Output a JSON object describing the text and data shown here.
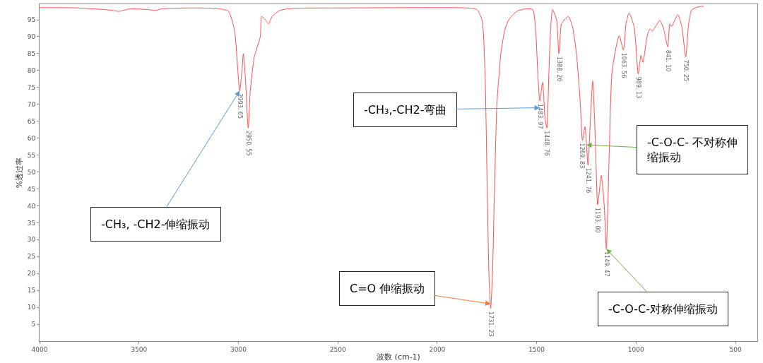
{
  "chart_data": {
    "type": "line",
    "xlabel": "波数 (cm-1)",
    "ylabel": "%透过率",
    "xlim": [
      4000,
      390
    ],
    "xticks": [
      4000,
      3500,
      3000,
      2500,
      2000,
      1500,
      1000,
      500
    ],
    "ylim": [
      0,
      99.6
    ],
    "yticks": [
      5,
      10,
      15,
      20,
      25,
      30,
      35,
      40,
      45,
      50,
      55,
      60,
      65,
      70,
      75,
      80,
      85,
      90,
      95
    ],
    "grid": false,
    "marker": "none",
    "line_style": "solid",
    "series": [
      {
        "color": "#ff4d4d",
        "x": [
          4000,
          3800,
          3650,
          3600,
          3550,
          3450,
          3420,
          3380,
          3200,
          3100,
          3050,
          3020,
          3005,
          2993.65,
          2982,
          2975,
          2965,
          2950.55,
          2940,
          2920,
          2890,
          2883,
          2865,
          2848,
          2830,
          2800,
          2750,
          2500,
          2000,
          1850,
          1800,
          1775,
          1760,
          1750,
          1740,
          1731.23,
          1722,
          1712,
          1700,
          1690,
          1680,
          1660,
          1640,
          1600,
          1560,
          1520,
          1505,
          1495,
          1483.97,
          1470,
          1458,
          1448.76,
          1438,
          1430,
          1420,
          1400,
          1388.26,
          1375,
          1360,
          1340,
          1320,
          1300,
          1280,
          1269.83,
          1257,
          1241.76,
          1230,
          1218,
          1205,
          1193.0,
          1175,
          1160,
          1149.47,
          1135,
          1120,
          1085,
          1063.56,
          1050,
          1035,
          1010,
          989.13,
          975,
          965,
          945,
          930,
          918,
          880,
          860,
          841.1,
          830,
          822,
          790,
          770,
          750.25,
          735,
          720,
          690,
          660
        ],
        "values": [
          98.6,
          98.5,
          97.9,
          97.5,
          98.2,
          98.0,
          97.7,
          98.3,
          98.5,
          98.3,
          97.5,
          92,
          82,
          74,
          80,
          85,
          78,
          63,
          74,
          84,
          90,
          96,
          95,
          93.8,
          96,
          97.5,
          98.3,
          98.5,
          98.6,
          98.5,
          98,
          95,
          80,
          50,
          20,
          9.7,
          20,
          45,
          70,
          78,
          85,
          92,
          95,
          97.5,
          98.2,
          98,
          92,
          80,
          71,
          76.5,
          66,
          63,
          80,
          92,
          98,
          95,
          85,
          93.8,
          95,
          96,
          93,
          85,
          70,
          59.3,
          63.4,
          52,
          65,
          76.9,
          60,
          40.3,
          49,
          40,
          27.3,
          55,
          80,
          90.3,
          86,
          94,
          97,
          93,
          79,
          84.5,
          82.4,
          90,
          92.3,
          91.7,
          94.8,
          92,
          87,
          93.8,
          93,
          96.5,
          93,
          84,
          94,
          97.9,
          98.8,
          99
        ]
      }
    ],
    "annotations": [
      {
        "text": "2993. 65",
        "x": 2993.65,
        "y": 74
      },
      {
        "text": "2950. 55",
        "x": 2950.55,
        "y": 63
      },
      {
        "text": "1731. 23",
        "x": 1731.23,
        "y": 9.7
      },
      {
        "text": "1483. 97",
        "x": 1483.97,
        "y": 71
      },
      {
        "text": "1448. 76",
        "x": 1448.76,
        "y": 63
      },
      {
        "text": "1388. 26",
        "x": 1388.26,
        "y": 85
      },
      {
        "text": "1269. 83",
        "x": 1269.83,
        "y": 59.3
      },
      {
        "text": "1241. 76",
        "x": 1241.76,
        "y": 52
      },
      {
        "text": "1193. 00",
        "x": 1193.0,
        "y": 40.3
      },
      {
        "text": "1149. 47",
        "x": 1149.47,
        "y": 27.3
      },
      {
        "text": "1063. 56",
        "x": 1063.56,
        "y": 86
      },
      {
        "text": "989. 13",
        "x": 989.13,
        "y": 79
      },
      {
        "text": "841. 10",
        "x": 841.1,
        "y": 87
      },
      {
        "text": "750. 25",
        "x": 750.25,
        "y": 84
      },
      {
        "text": "-CH₃, -CH2-伸缩振动",
        "x": 2993.65,
        "y": 74
      },
      {
        "text": "-CH₃,-CH2-弯曲",
        "x": 1483.97,
        "y": 69
      },
      {
        "text": "C=O 伸缩振动",
        "x": 1731.23,
        "y": 11
      },
      {
        "text": "-C-O-C- 不对称伸缩振动",
        "x": 1250,
        "y": 58
      },
      {
        "text": "-C-O-C-对称伸缩振动",
        "x": 1149.47,
        "y": 27.3
      }
    ]
  }
}
